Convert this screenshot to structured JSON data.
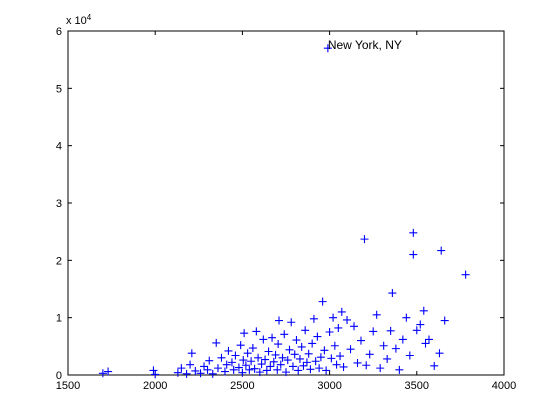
{
  "chart_data": {
    "type": "scatter",
    "title": "",
    "xlabel": "",
    "ylabel": "",
    "xlim": [
      1500,
      4000
    ],
    "ylim": [
      0,
      60000
    ],
    "x_ticks": [
      1500,
      2000,
      2500,
      3000,
      3500,
      4000
    ],
    "y_ticks": [
      0,
      10000,
      20000,
      30000,
      40000,
      50000,
      60000
    ],
    "x_tick_labels": [
      "1500",
      "2000",
      "2500",
      "3000",
      "3500",
      "4000"
    ],
    "y_tick_labels": [
      "0",
      "1",
      "2",
      "3",
      "4",
      "5",
      "6"
    ],
    "y_exponent_base": "x 10",
    "y_exponent_power": "4",
    "grid": false,
    "marker": "+",
    "marker_color": "#0000ff",
    "annotation": {
      "text": "New York, NY",
      "x": 2990,
      "y": 57000
    },
    "series": [
      {
        "points": [
          [
            1700,
            300
          ],
          [
            1730,
            600
          ],
          [
            1990,
            800
          ],
          [
            2000,
            100
          ],
          [
            2130,
            400
          ],
          [
            2150,
            1200
          ],
          [
            2180,
            200
          ],
          [
            2200,
            1800
          ],
          [
            2210,
            3800
          ],
          [
            2230,
            700
          ],
          [
            2260,
            300
          ],
          [
            2280,
            1500
          ],
          [
            2300,
            900
          ],
          [
            2310,
            2500
          ],
          [
            2330,
            200
          ],
          [
            2350,
            5600
          ],
          [
            2360,
            1200
          ],
          [
            2380,
            3000
          ],
          [
            2400,
            600
          ],
          [
            2410,
            1800
          ],
          [
            2420,
            4200
          ],
          [
            2440,
            2200
          ],
          [
            2450,
            900
          ],
          [
            2460,
            3400
          ],
          [
            2480,
            1300
          ],
          [
            2490,
            5200
          ],
          [
            2500,
            400
          ],
          [
            2505,
            2600
          ],
          [
            2510,
            7300
          ],
          [
            2520,
            1700
          ],
          [
            2530,
            3800
          ],
          [
            2540,
            900
          ],
          [
            2550,
            2400
          ],
          [
            2560,
            4700
          ],
          [
            2570,
            1100
          ],
          [
            2580,
            7600
          ],
          [
            2590,
            3000
          ],
          [
            2600,
            500
          ],
          [
            2610,
            1900
          ],
          [
            2620,
            6200
          ],
          [
            2630,
            2700
          ],
          [
            2640,
            800
          ],
          [
            2650,
            4100
          ],
          [
            2660,
            1500
          ],
          [
            2670,
            6500
          ],
          [
            2680,
            2300
          ],
          [
            2690,
            3500
          ],
          [
            2700,
            900
          ],
          [
            2705,
            5400
          ],
          [
            2710,
            9500
          ],
          [
            2720,
            1800
          ],
          [
            2730,
            3000
          ],
          [
            2740,
            7100
          ],
          [
            2750,
            500
          ],
          [
            2760,
            2600
          ],
          [
            2770,
            4400
          ],
          [
            2780,
            9200
          ],
          [
            2790,
            1500
          ],
          [
            2800,
            3600
          ],
          [
            2810,
            6100
          ],
          [
            2820,
            800
          ],
          [
            2830,
            2800
          ],
          [
            2840,
            4900
          ],
          [
            2850,
            1600
          ],
          [
            2860,
            7800
          ],
          [
            2870,
            2200
          ],
          [
            2880,
            3700
          ],
          [
            2890,
            1000
          ],
          [
            2900,
            5500
          ],
          [
            2910,
            9800
          ],
          [
            2920,
            2400
          ],
          [
            2930,
            6700
          ],
          [
            2940,
            1200
          ],
          [
            2950,
            3100
          ],
          [
            2960,
            12800
          ],
          [
            2970,
            4300
          ],
          [
            2980,
            800
          ],
          [
            2990,
            57000
          ],
          [
            3000,
            7500
          ],
          [
            3010,
            2900
          ],
          [
            3020,
            10000
          ],
          [
            3030,
            5100
          ],
          [
            3040,
            1800
          ],
          [
            3050,
            8200
          ],
          [
            3060,
            3300
          ],
          [
            3070,
            11000
          ],
          [
            3080,
            1400
          ],
          [
            3100,
            9600
          ],
          [
            3120,
            4500
          ],
          [
            3140,
            8500
          ],
          [
            3160,
            2100
          ],
          [
            3180,
            6000
          ],
          [
            3200,
            23700
          ],
          [
            3210,
            1700
          ],
          [
            3230,
            3600
          ],
          [
            3250,
            7600
          ],
          [
            3270,
            10500
          ],
          [
            3290,
            1200
          ],
          [
            3310,
            5100
          ],
          [
            3330,
            2800
          ],
          [
            3350,
            7700
          ],
          [
            3360,
            14300
          ],
          [
            3380,
            4600
          ],
          [
            3400,
            900
          ],
          [
            3420,
            6200
          ],
          [
            3440,
            10000
          ],
          [
            3460,
            3400
          ],
          [
            3480,
            21000
          ],
          [
            3480,
            24800
          ],
          [
            3500,
            7800
          ],
          [
            3520,
            8800
          ],
          [
            3540,
            11200
          ],
          [
            3550,
            5500
          ],
          [
            3570,
            6200
          ],
          [
            3600,
            1600
          ],
          [
            3630,
            3800
          ],
          [
            3640,
            21700
          ],
          [
            3660,
            9500
          ],
          [
            3780,
            17500
          ]
        ]
      }
    ]
  }
}
